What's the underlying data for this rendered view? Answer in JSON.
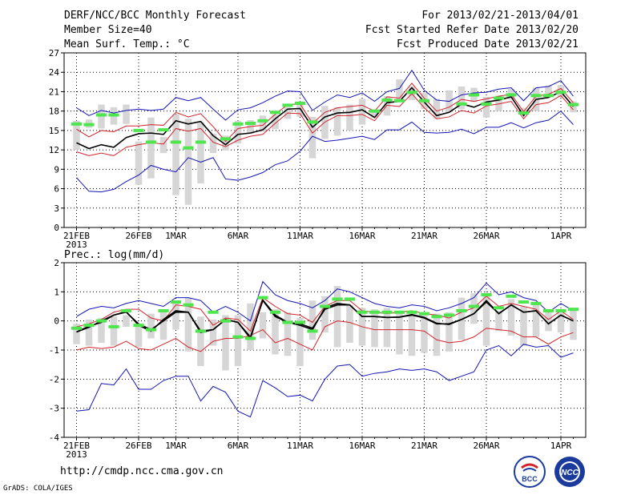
{
  "header": {
    "left": [
      "DERF/NCC/BCC Monthly Forecast",
      "Member Size=40",
      "Mean Surf. Temp.: °C"
    ],
    "right": [
      "For 2013/02/21-2013/04/01",
      "Fcst Started Refer Date 2013/02/20",
      "Fcst Produced Date 2013/02/21"
    ]
  },
  "footer": {
    "url": "http://cmdp.ncc.cma.gov.cn",
    "grads": "GrADS: COLA/IGES",
    "logo_left_text": "BCC",
    "logo_right_text": "NCC"
  },
  "colors": {
    "bar": "#d6d6d6",
    "mean": "#000000",
    "red": "#d2232a",
    "blue": "#1414b4",
    "obs": "#4de64d"
  },
  "chart_data": [
    {
      "type": "line",
      "title": "Mean Surf. Temp.: °C",
      "ylabel": "°C",
      "ylim": [
        0,
        27
      ],
      "yticks": [
        0,
        3,
        6,
        9,
        12,
        15,
        18,
        21,
        24,
        27
      ],
      "xtick_labels": [
        {
          "day": 0,
          "label": "21FEB",
          "sub": "2013"
        },
        {
          "day": 5,
          "label": "26FEB"
        },
        {
          "day": 8,
          "label": "1MAR"
        },
        {
          "day": 13,
          "label": "6MAR"
        },
        {
          "day": 18,
          "label": "11MAR"
        },
        {
          "day": 23,
          "label": "16MAR"
        },
        {
          "day": 28,
          "label": "21MAR"
        },
        {
          "day": 33,
          "label": "26MAR"
        },
        {
          "day": 39,
          "label": "1APR"
        }
      ],
      "series": [
        {
          "name": "upper",
          "color": "blue",
          "values": [
            18.5,
            17.3,
            18.1,
            17.7,
            18.1,
            18.3,
            18.1,
            18.3,
            20.1,
            19.6,
            20.1,
            18.3,
            16.6,
            18.2,
            18.5,
            19.3,
            20.3,
            21.1,
            21.0,
            18.1,
            19.4,
            20.5,
            20.1,
            20.8,
            19.5,
            21.0,
            21.5,
            24.3,
            21.2,
            19.7,
            19.5,
            20.5,
            20.8,
            20.9,
            21.4,
            21.6,
            19.6,
            21.6,
            21.8,
            22.7,
            20.3
          ]
        },
        {
          "name": "red_upper",
          "color": "red",
          "values": [
            15.2,
            14.0,
            15.0,
            14.8,
            15.7,
            15.7,
            15.9,
            15.8,
            17.8,
            17.1,
            17.6,
            15.6,
            13.3,
            15.3,
            15.6,
            15.8,
            17.5,
            19.0,
            19.1,
            16.1,
            17.8,
            18.5,
            18.7,
            18.9,
            18.0,
            20.2,
            20.0,
            22.3,
            20.0,
            18.0,
            18.6,
            19.8,
            19.5,
            19.9,
            20.3,
            20.6,
            17.9,
            20.3,
            20.6,
            21.5,
            19.3
          ]
        },
        {
          "name": "mean",
          "color": "mean",
          "values": [
            13.1,
            12.2,
            12.8,
            12.4,
            13.9,
            14.5,
            14.6,
            14.4,
            16.5,
            16.0,
            16.4,
            14.2,
            12.8,
            14.4,
            14.6,
            15.1,
            16.8,
            18.3,
            18.4,
            15.5,
            17.1,
            17.7,
            17.8,
            18.2,
            17.0,
            19.3,
            19.5,
            21.6,
            19.4,
            17.3,
            17.8,
            19.1,
            18.6,
            19.4,
            19.7,
            20.2,
            17.3,
            19.8,
            20.1,
            21.0,
            18.7
          ]
        },
        {
          "name": "red_lower",
          "color": "red",
          "values": [
            11.7,
            11.1,
            11.5,
            11.1,
            12.4,
            12.8,
            13.1,
            12.9,
            15.3,
            14.9,
            15.3,
            13.2,
            12.5,
            13.5,
            14.1,
            14.4,
            16.1,
            17.7,
            17.6,
            14.6,
            16.3,
            17.3,
            17.3,
            17.5,
            16.5,
            18.9,
            18.7,
            20.7,
            18.5,
            16.8,
            17.1,
            18.1,
            17.7,
            18.8,
            19.1,
            19.5,
            16.8,
            19.0,
            19.3,
            20.4,
            18.2
          ]
        },
        {
          "name": "lower",
          "color": "blue",
          "values": [
            7.7,
            5.6,
            5.5,
            5.9,
            7.1,
            8.1,
            9.6,
            9.0,
            8.6,
            10.8,
            10.1,
            10.8,
            7.5,
            7.3,
            7.8,
            8.5,
            9.7,
            10.3,
            11.8,
            14.1,
            13.3,
            13.5,
            13.8,
            14.1,
            13.6,
            15.1,
            15.1,
            16.3,
            14.7,
            14.6,
            14.7,
            15.2,
            14.5,
            15.5,
            15.5,
            16.2,
            15.4,
            16.2,
            16.6,
            18.0,
            15.9
          ]
        }
      ],
      "boxes": [
        [
          12.0,
          16.5
        ],
        [
          15.4,
          16.7
        ],
        [
          15.3,
          19.0
        ],
        [
          15.9,
          18.6
        ],
        [
          16.0,
          19.0
        ],
        [
          6.6,
          13.3
        ],
        [
          7.6,
          17.0
        ],
        [
          11.5,
          14.0
        ],
        [
          5.0,
          17.5
        ],
        [
          3.5,
          16.8
        ],
        [
          6.8,
          16.3
        ],
        [
          11.5,
          14.5
        ],
        [
          11.9,
          14.2
        ],
        [
          13.0,
          16.5
        ],
        [
          14.5,
          16.6
        ],
        [
          14.8,
          17.3
        ],
        [
          15.2,
          17.5
        ],
        [
          16.8,
          18.6
        ],
        [
          17.1,
          19.5
        ],
        [
          10.7,
          17.1
        ],
        [
          13.7,
          18.8
        ],
        [
          14.2,
          18.6
        ],
        [
          15.0,
          19.0
        ],
        [
          15.9,
          19.9
        ],
        [
          17.0,
          18.2
        ],
        [
          17.3,
          20.3
        ],
        [
          19.6,
          22.9
        ],
        [
          19.7,
          21.8
        ],
        [
          18.3,
          20.8
        ],
        [
          16.8,
          19.9
        ],
        [
          17.8,
          21.2
        ],
        [
          18.3,
          21.8
        ],
        [
          19.4,
          21.6
        ],
        [
          17.0,
          20.2
        ],
        [
          18.0,
          20.4
        ],
        [
          19.8,
          21.4
        ],
        [
          17.6,
          18.5
        ],
        [
          18.0,
          21.6
        ],
        [
          20.2,
          21.9
        ],
        [
          20.2,
          22.0
        ],
        [
          17.8,
          19.5
        ]
      ],
      "observed": [
        16.0,
        15.9,
        17.4,
        17.4,
        null,
        15.0,
        13.2,
        15.1,
        13.2,
        12.3,
        13.2,
        null,
        13.7,
        16.0,
        16.1,
        16.5,
        17.8,
        18.9,
        19.2,
        16.3,
        null,
        null,
        null,
        null,
        18.0,
        19.7,
        19.6,
        20.9,
        19.6,
        null,
        null,
        19.1,
        20.5,
        19.1,
        20.0,
        20.5,
        17.7,
        20.4,
        20.4,
        20.9,
        19.0
      ]
    },
    {
      "type": "line",
      "title": "Prec.: log(mm/d)",
      "ylabel": "log(mm/d)",
      "ylim": [
        -4,
        2
      ],
      "yticks": [
        -4,
        -3,
        -2,
        -1,
        0,
        1,
        2
      ],
      "xtick_labels": [
        {
          "day": 0,
          "label": "21FEB",
          "sub": "2013"
        },
        {
          "day": 5,
          "label": "26FEB"
        },
        {
          "day": 8,
          "label": "1MAR"
        },
        {
          "day": 13,
          "label": "6MAR"
        },
        {
          "day": 18,
          "label": "11MAR"
        },
        {
          "day": 23,
          "label": "16MAR"
        },
        {
          "day": 28,
          "label": "21MAR"
        },
        {
          "day": 33,
          "label": "26MAR"
        },
        {
          "day": 39,
          "label": "1APR"
        }
      ],
      "series": [
        {
          "name": "upper",
          "color": "blue",
          "values": [
            0.15,
            0.4,
            0.5,
            0.45,
            0.6,
            0.7,
            0.6,
            0.5,
            0.8,
            0.8,
            0.7,
            0.3,
            0.5,
            0.3,
            0.0,
            1.35,
            0.9,
            0.7,
            0.6,
            0.45,
            0.7,
            1.1,
            1.0,
            0.8,
            0.6,
            0.5,
            0.45,
            0.55,
            0.5,
            0.35,
            0.45,
            0.6,
            0.8,
            1.3,
            0.9,
            1.0,
            0.8,
            0.7,
            0.3,
            0.6,
            0.35
          ]
        },
        {
          "name": "red_upper",
          "color": "red",
          "values": [
            -0.2,
            -0.1,
            0.05,
            0.3,
            0.4,
            0.4,
            0.1,
            0.0,
            0.55,
            0.5,
            0.4,
            -0.15,
            0.1,
            0.05,
            -0.35,
            0.8,
            0.5,
            0.25,
            0.2,
            -0.05,
            0.5,
            0.7,
            0.7,
            0.35,
            0.3,
            0.25,
            0.3,
            0.35,
            0.25,
            0.2,
            0.1,
            0.3,
            0.45,
            0.85,
            0.5,
            0.6,
            0.5,
            0.4,
            0.05,
            0.35,
            0.05
          ]
        },
        {
          "name": "mean",
          "color": "mean",
          "values": [
            -0.38,
            -0.22,
            0.0,
            0.2,
            0.32,
            -0.15,
            -0.35,
            0.05,
            0.35,
            0.3,
            -0.35,
            -0.3,
            0.05,
            -0.05,
            -0.55,
            0.7,
            0.15,
            -0.05,
            -0.1,
            -0.25,
            0.4,
            0.55,
            0.55,
            0.15,
            0.15,
            0.12,
            0.13,
            0.22,
            0.12,
            -0.08,
            -0.12,
            0.05,
            0.25,
            0.65,
            0.25,
            0.55,
            0.3,
            0.35,
            -0.1,
            0.2,
            0.0
          ]
        },
        {
          "name": "red_lower",
          "color": "red",
          "values": [
            -1.0,
            -0.9,
            -0.95,
            -0.9,
            -0.7,
            -0.95,
            -1.0,
            -0.8,
            -0.6,
            -0.9,
            -1.05,
            -0.7,
            -0.6,
            -0.6,
            -0.5,
            -0.3,
            -0.75,
            -0.6,
            -0.8,
            -1.0,
            -0.2,
            0.0,
            -0.05,
            -0.2,
            -0.3,
            -0.3,
            -0.3,
            -0.3,
            -0.35,
            -0.65,
            -0.75,
            -0.7,
            -0.55,
            -0.25,
            -0.3,
            -0.35,
            -0.55,
            -0.55,
            -0.8,
            -0.55,
            -0.4
          ]
        },
        {
          "name": "lower",
          "color": "blue",
          "values": [
            -3.1,
            -3.05,
            -2.15,
            -2.2,
            -1.65,
            -2.35,
            -2.35,
            -2.05,
            -1.9,
            -1.9,
            -2.75,
            -2.25,
            -2.45,
            -3.1,
            -3.3,
            -2.05,
            -2.3,
            -2.6,
            -2.55,
            -2.75,
            -2.0,
            -1.55,
            -1.5,
            -1.9,
            -1.8,
            -1.75,
            -1.65,
            -1.7,
            -1.65,
            -1.75,
            -2.05,
            -1.9,
            -1.75,
            -1.0,
            -0.85,
            -1.2,
            -0.8,
            -0.9,
            -0.85,
            -1.25,
            -1.1
          ]
        },
        {
          "name": "mean_alt",
          "color": "mean",
          "values": [
            -0.38,
            -0.18,
            -0.05,
            0.2,
            0.3,
            -0.1,
            -0.3,
            0.0,
            0.3,
            0.3,
            -0.4,
            -0.3,
            0.05,
            -0.05,
            -0.6,
            0.72,
            0.2,
            -0.05,
            -0.15,
            -0.3,
            0.45,
            0.6,
            0.55,
            0.15,
            0.15,
            0.12,
            0.13,
            0.2,
            0.1,
            -0.1,
            -0.1,
            0.05,
            0.25,
            0.7,
            0.25,
            0.55,
            0.3,
            0.35,
            -0.1,
            0.2,
            0.0
          ]
        }
      ],
      "boxes": [
        [
          -0.8,
          -0.1
        ],
        [
          -0.85,
          0.05
        ],
        [
          -0.75,
          0.1
        ],
        [
          -0.85,
          0.15
        ],
        [
          -0.2,
          0.2
        ],
        [
          -0.9,
          -0.1
        ],
        [
          -0.6,
          0.25
        ],
        [
          -0.65,
          0.35
        ],
        [
          -0.3,
          0.65
        ],
        [
          -1.05,
          0.8
        ],
        [
          -1.55,
          0.15
        ],
        [
          -0.85,
          0.05
        ],
        [
          -1.7,
          0.2
        ],
        [
          -1.55,
          0.2
        ],
        [
          -1.0,
          0.6
        ],
        [
          -0.6,
          0.3
        ],
        [
          -1.15,
          0.4
        ],
        [
          -1.2,
          0.3
        ],
        [
          -1.55,
          0.1
        ],
        [
          -0.65,
          0.7
        ],
        [
          -0.4,
          0.85
        ],
        [
          -0.9,
          1.2
        ],
        [
          -0.75,
          0.55
        ],
        [
          -0.85,
          0.45
        ],
        [
          -0.9,
          0.4
        ],
        [
          -0.9,
          0.45
        ],
        [
          -1.15,
          0.35
        ],
        [
          -1.2,
          0.2
        ],
        [
          -1.1,
          0.25
        ],
        [
          -1.2,
          0.25
        ],
        [
          -1.05,
          0.3
        ],
        [
          -0.65,
          0.8
        ],
        [
          -0.1,
          0.95
        ],
        [
          -0.85,
          0.95
        ],
        [
          -0.35,
          0.35
        ],
        [
          -0.5,
          0.75
        ],
        [
          -0.85,
          0.5
        ],
        [
          -0.55,
          0.6
        ],
        [
          -0.35,
          0.35
        ],
        [
          -0.4,
          0.4
        ],
        [
          -0.65,
          0.35
        ]
      ],
      "observed": [
        -0.25,
        -0.15,
        0.0,
        -0.2,
        0.35,
        -0.15,
        -0.3,
        0.35,
        0.65,
        0.55,
        -0.35,
        0.3,
        0.0,
        -0.55,
        -0.6,
        0.8,
        0.3,
        -0.05,
        -0.05,
        -0.35,
        0.5,
        0.75,
        0.75,
        0.3,
        0.3,
        0.3,
        0.3,
        0.3,
        0.25,
        0.15,
        0.2,
        0.35,
        0.5,
        0.9,
        0.45,
        0.85,
        0.65,
        0.6,
        0.35,
        0.35,
        0.4
      ]
    }
  ]
}
